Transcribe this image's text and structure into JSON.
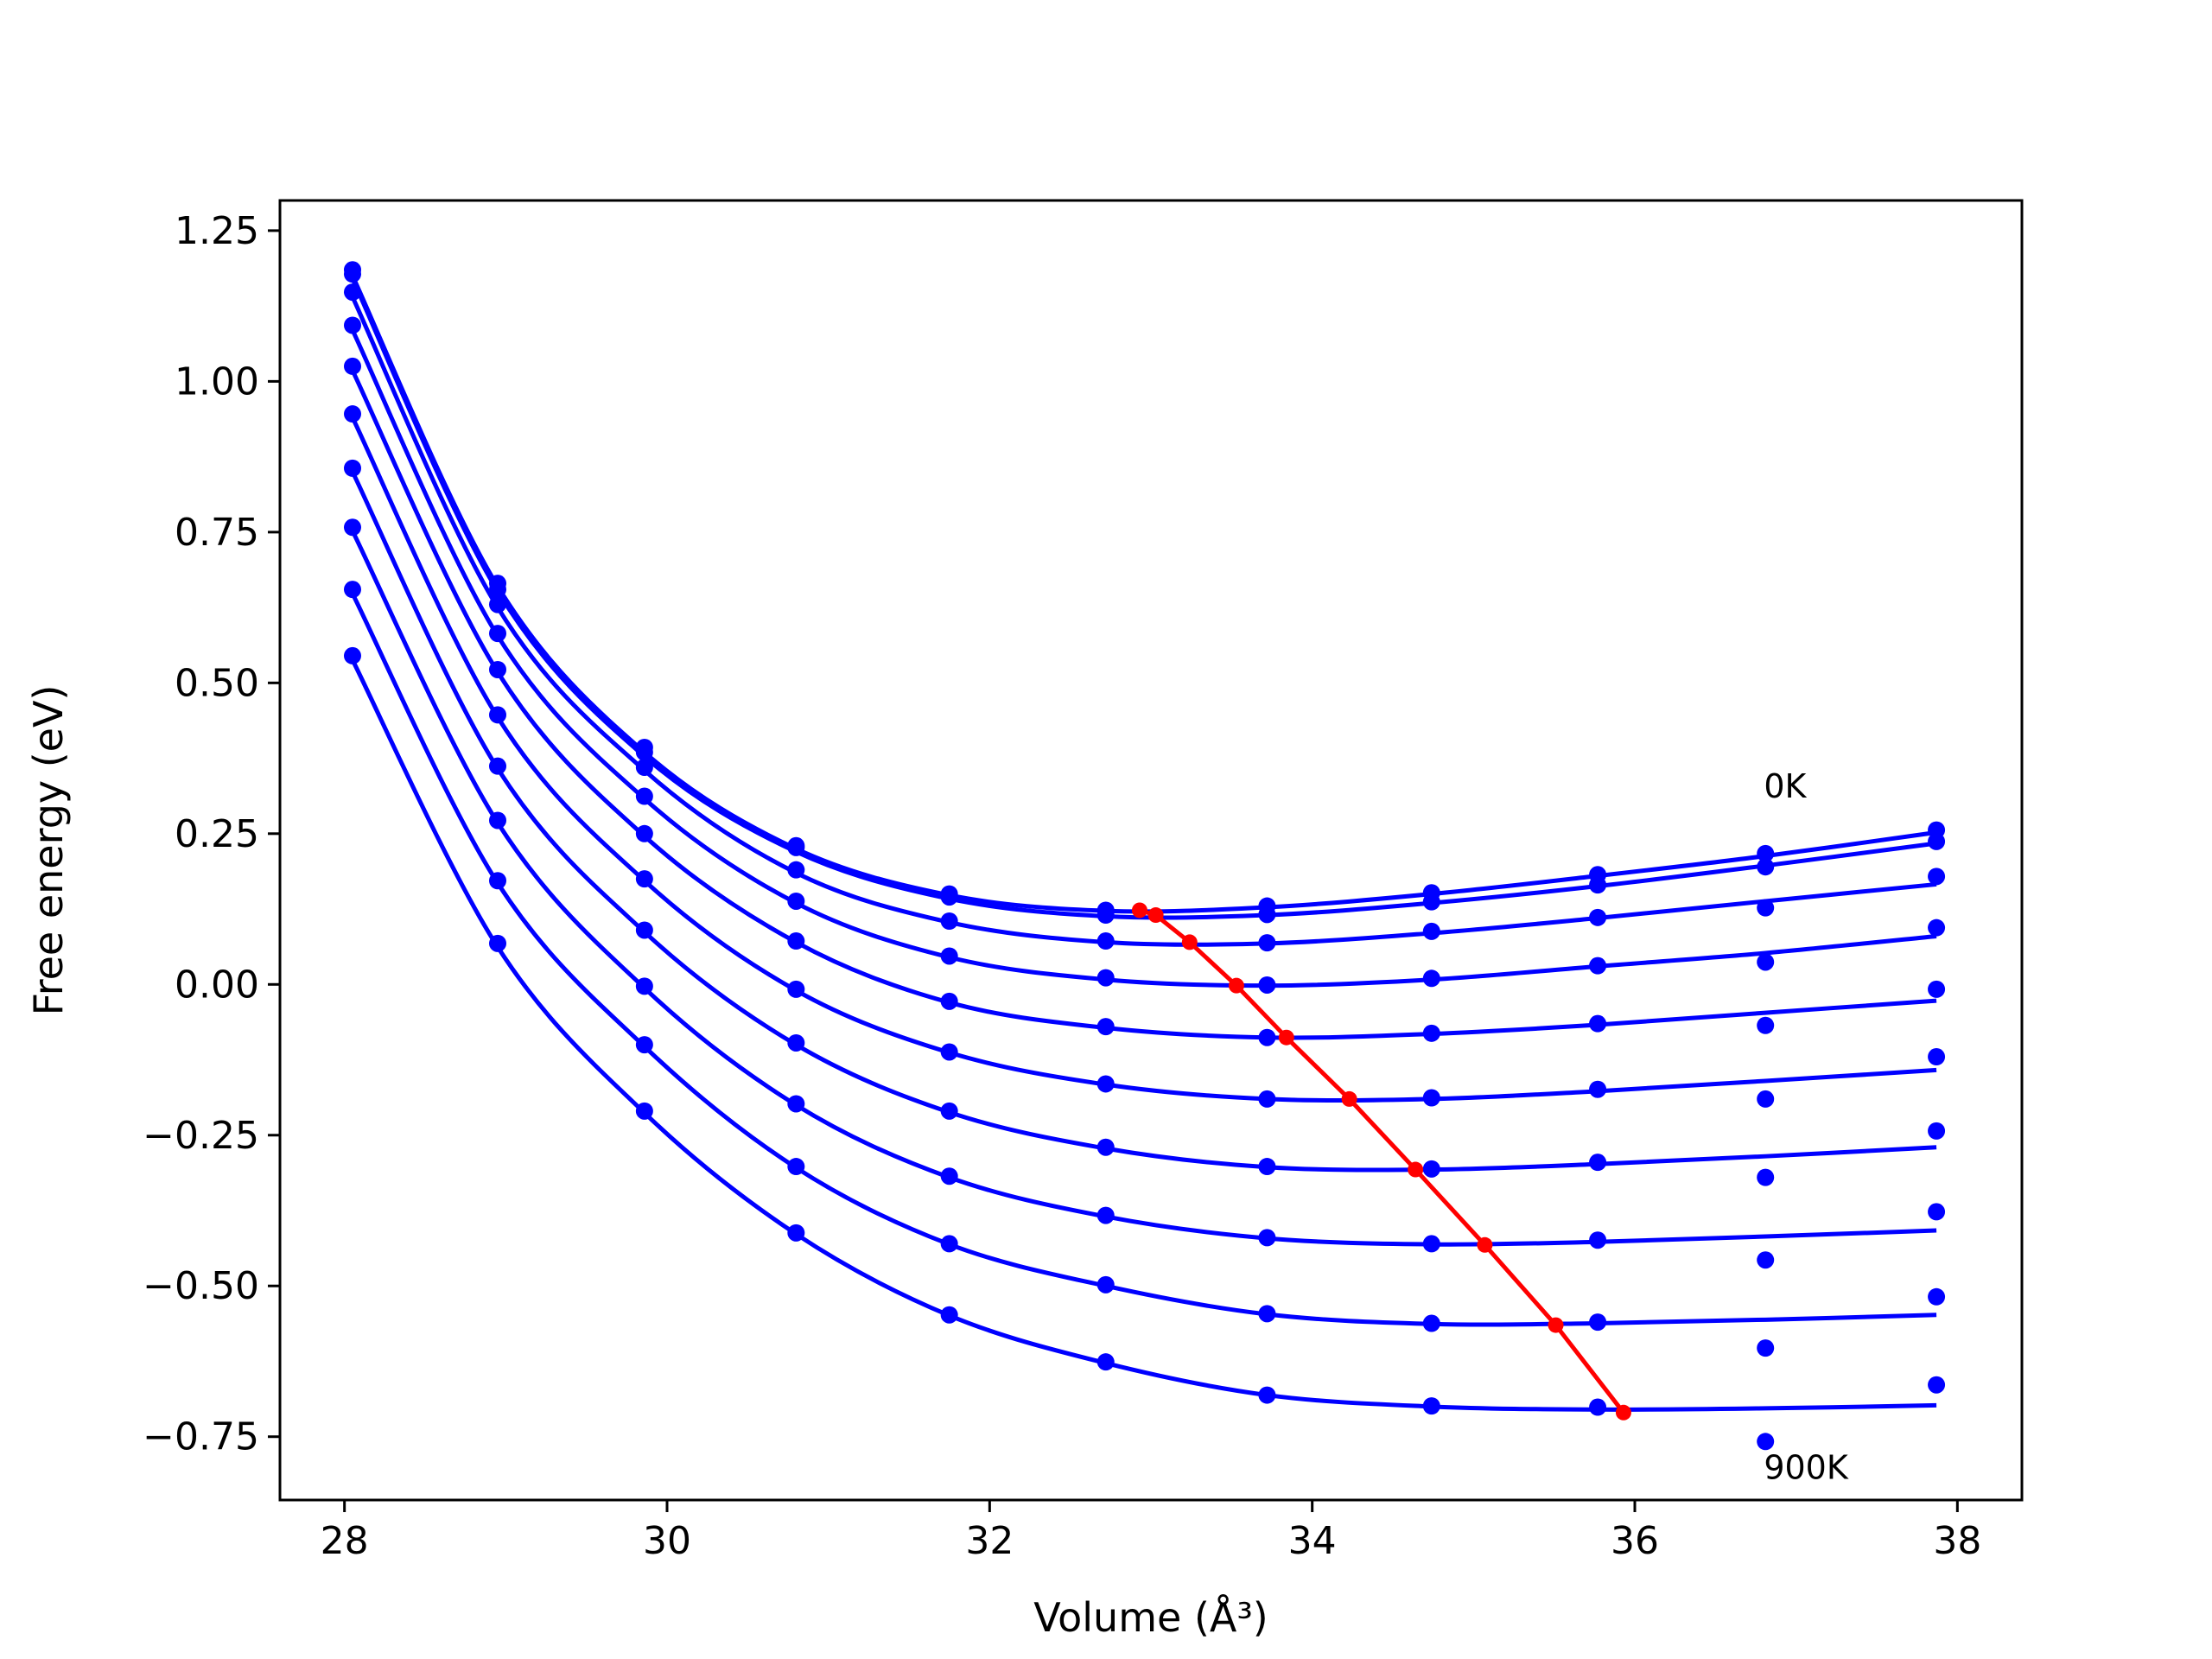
{
  "chart_data": {
    "type": "line",
    "xlabel": "Volume (Å³)",
    "ylabel": "Free energy (eV)",
    "xlim": [
      27.6,
      38.4
    ],
    "ylim": [
      -0.855,
      1.3
    ],
    "xticks": [
      28,
      30,
      32,
      34,
      36,
      38
    ],
    "yticks": [
      1.25,
      1.0,
      0.75,
      0.5,
      0.25,
      0.0,
      -0.25,
      -0.5,
      -0.75
    ],
    "x_points": [
      28.05,
      28.95,
      29.86,
      30.8,
      31.75,
      32.72,
      33.72,
      34.74,
      35.77,
      36.81,
      37.87
    ],
    "series": [
      {
        "label": "0K",
        "color": "#0000ff",
        "points": [
          1.185,
          0.665,
          0.393,
          0.23,
          0.15,
          0.123,
          0.13,
          0.152,
          0.182,
          0.217,
          0.256
        ],
        "curve": [
          1.175,
          0.66,
          0.385,
          0.225,
          0.148,
          0.122,
          0.128,
          0.15,
          0.18,
          0.213,
          0.252
        ]
      },
      {
        "color": "#0000ff",
        "points": [
          1.178,
          0.655,
          0.385,
          0.227,
          0.145,
          0.115,
          0.116,
          0.137,
          0.165,
          0.195,
          0.237
        ],
        "curve": [
          1.17,
          0.652,
          0.378,
          0.22,
          0.142,
          0.113,
          0.115,
          0.135,
          0.163,
          0.197,
          0.234
        ]
      },
      {
        "color": "#0000ff",
        "points": [
          1.148,
          0.63,
          0.36,
          0.19,
          0.105,
          0.072,
          0.069,
          0.088,
          0.111,
          0.127,
          0.179
        ],
        "curve": [
          1.14,
          0.625,
          0.355,
          0.185,
          0.103,
          0.07,
          0.068,
          0.085,
          0.11,
          0.138,
          0.166
        ]
      },
      {
        "color": "#0000ff",
        "points": [
          1.093,
          0.582,
          0.312,
          0.138,
          0.047,
          0.011,
          -0.001,
          0.01,
          0.031,
          0.037,
          0.094
        ],
        "curve": [
          1.085,
          0.578,
          0.308,
          0.135,
          0.045,
          0.008,
          -0.002,
          0.008,
          0.03,
          0.052,
          0.08
        ]
      },
      {
        "color": "#0000ff",
        "points": [
          1.025,
          0.522,
          0.25,
          0.072,
          -0.028,
          -0.07,
          -0.088,
          -0.081,
          -0.065,
          -0.068,
          -0.008
        ],
        "curve": [
          1.018,
          0.518,
          0.246,
          0.07,
          -0.03,
          -0.072,
          -0.088,
          -0.082,
          -0.067,
          -0.047,
          -0.027
        ]
      },
      {
        "color": "#0000ff",
        "points": [
          0.946,
          0.447,
          0.175,
          -0.008,
          -0.112,
          -0.165,
          -0.19,
          -0.188,
          -0.174,
          -0.19,
          -0.12
        ],
        "curve": [
          0.94,
          0.443,
          0.172,
          -0.01,
          -0.113,
          -0.166,
          -0.19,
          -0.19,
          -0.177,
          -0.16,
          -0.142
        ]
      },
      {
        "color": "#0000ff",
        "points": [
          0.856,
          0.362,
          0.09,
          -0.097,
          -0.21,
          -0.27,
          -0.302,
          -0.306,
          -0.295,
          -0.32,
          -0.243
        ],
        "curve": [
          0.85,
          0.358,
          0.087,
          -0.1,
          -0.212,
          -0.272,
          -0.303,
          -0.307,
          -0.298,
          -0.285,
          -0.27
        ]
      },
      {
        "color": "#0000ff",
        "points": [
          0.758,
          0.272,
          -0.003,
          -0.198,
          -0.318,
          -0.383,
          -0.42,
          -0.43,
          -0.424,
          -0.457,
          -0.377
        ],
        "curve": [
          0.752,
          0.268,
          -0.006,
          -0.2,
          -0.32,
          -0.385,
          -0.421,
          -0.431,
          -0.427,
          -0.418,
          -0.408
        ]
      },
      {
        "color": "#0000ff",
        "points": [
          0.655,
          0.172,
          -0.1,
          -0.302,
          -0.43,
          -0.498,
          -0.546,
          -0.562,
          -0.56,
          -0.603,
          -0.518
        ],
        "curve": [
          0.648,
          0.168,
          -0.103,
          -0.304,
          -0.431,
          -0.5,
          -0.547,
          -0.563,
          -0.562,
          -0.556,
          -0.548
        ]
      },
      {
        "label": "900K",
        "color": "#0000ff",
        "points": [
          0.545,
          0.068,
          -0.21,
          -0.412,
          -0.548,
          -0.626,
          -0.681,
          -0.699,
          -0.701,
          -0.758,
          -0.664
        ],
        "curve": [
          0.538,
          0.062,
          -0.213,
          -0.414,
          -0.549,
          -0.628,
          -0.681,
          -0.7,
          -0.705,
          -0.703,
          -0.698
        ]
      }
    ],
    "minima_line": {
      "color": "#ff0000",
      "x": [
        32.93,
        33.03,
        33.24,
        33.53,
        33.84,
        34.23,
        34.64,
        35.07,
        35.51,
        35.93
      ],
      "y": [
        0.123,
        0.115,
        0.07,
        -0.002,
        -0.088,
        -0.19,
        -0.307,
        -0.432,
        -0.565,
        -0.71
      ]
    },
    "annotations": [
      {
        "text": "0K",
        "x": 36.8,
        "y": 0.31
      },
      {
        "text": "900K",
        "x": 36.8,
        "y": -0.82
      }
    ],
    "grid": false
  }
}
